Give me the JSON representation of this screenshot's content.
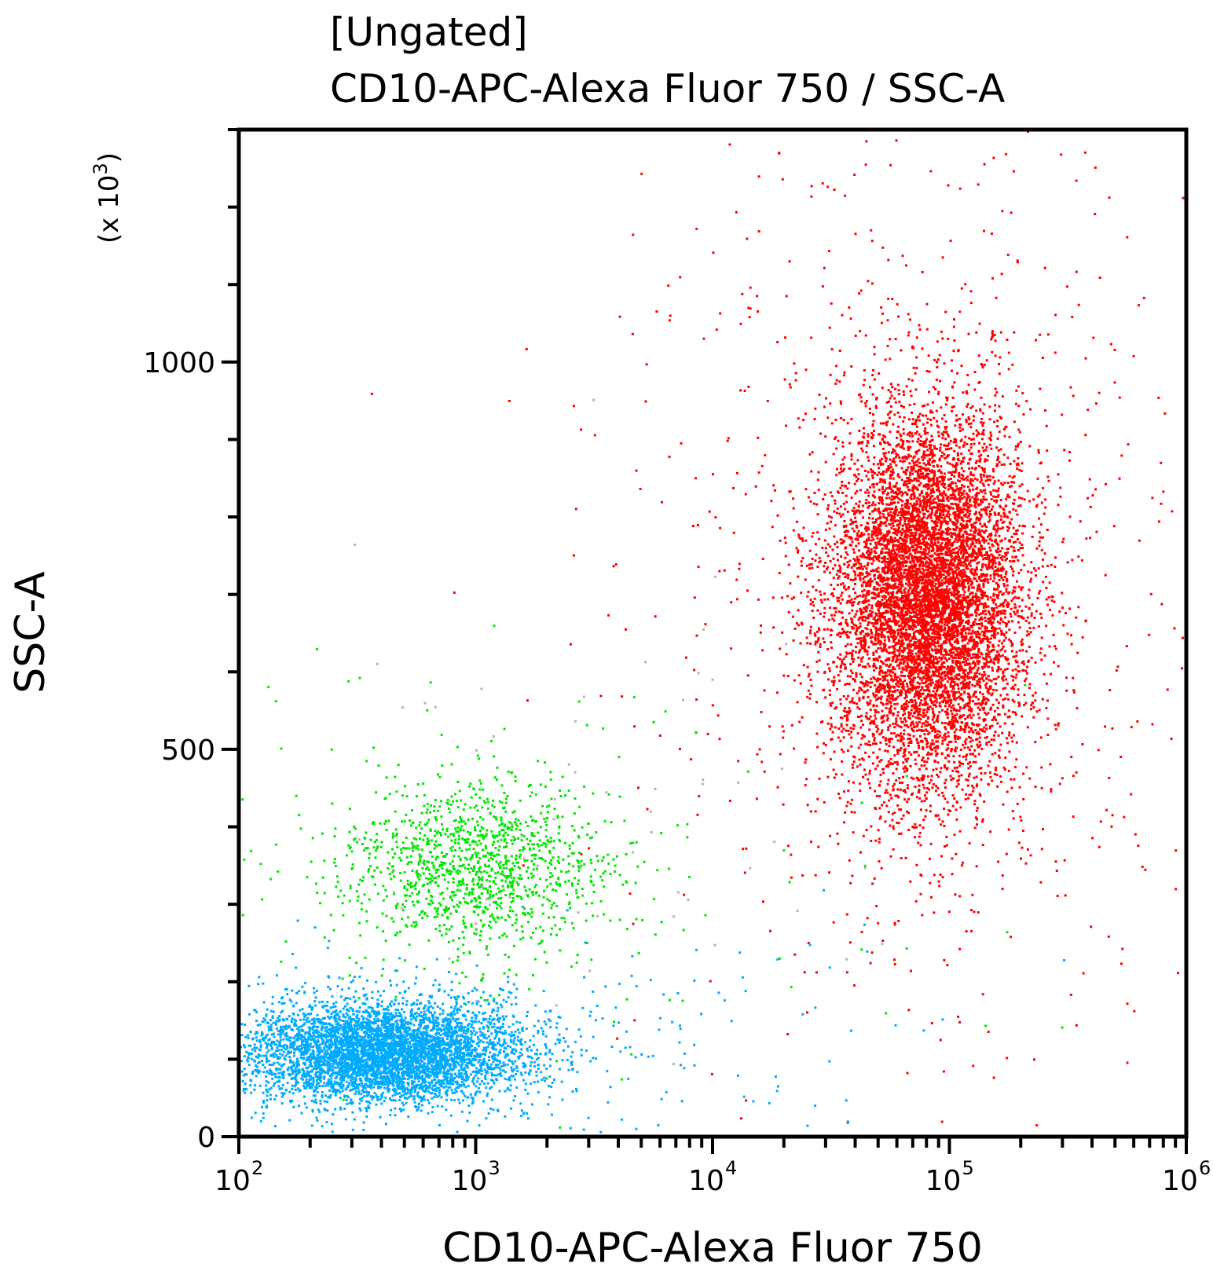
{
  "chart_data": {
    "type": "scatter",
    "title": "[Ungated]",
    "subtitle": "CD10-APC-Alexa Fluor 750 / SSC-A",
    "xlabel": "CD10-APC-Alexa Fluor 750",
    "ylabel": "SSC-A",
    "y_multiplier": "(x 10",
    "y_multiplier_exp": "3",
    "y_multiplier_close": ")",
    "xscale": "log",
    "xlim": [
      100,
      1000000
    ],
    "ylim": [
      0,
      1300
    ],
    "x_ticks": [
      {
        "base": "10",
        "exp": "2",
        "value": 100
      },
      {
        "base": "10",
        "exp": "3",
        "value": 1000
      },
      {
        "base": "10",
        "exp": "4",
        "value": 10000
      },
      {
        "base": "10",
        "exp": "5",
        "value": 100000
      },
      {
        "base": "10",
        "exp": "6",
        "value": 1000000
      }
    ],
    "y_ticks": [
      {
        "label": "0",
        "value": 0
      },
      {
        "label": "500",
        "value": 500
      },
      {
        "label": "1000",
        "value": 1000
      }
    ],
    "grid": false,
    "populations": [
      {
        "color": "#ff0000",
        "center_x": 80000,
        "center_y": 700,
        "count": 9000
      },
      {
        "color": "#00e600",
        "center_x": 1000,
        "center_y": 350,
        "count": 1400
      },
      {
        "color": "#00aaff",
        "center_x": 400,
        "center_y": 110,
        "count": 5500
      },
      {
        "color": "#b4b4b4",
        "center_x": 3000,
        "center_y": 450,
        "count": 60
      }
    ]
  }
}
